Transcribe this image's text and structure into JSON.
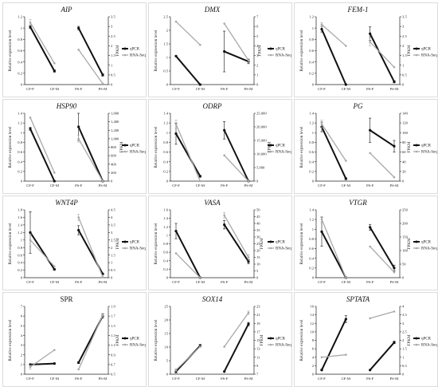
{
  "legend": {
    "qpcr_label": "qPCR",
    "rnaseq_label": "RNA-Seq"
  },
  "colors": {
    "qpcr": "#111111",
    "rnaseq": "#a9a9a9",
    "frame": "#d4d4d4",
    "axis": "#222222"
  },
  "axis_labels": {
    "left": "Relative expression level",
    "right": "FPKM"
  },
  "chart_data": [
    {
      "type": "line",
      "title": "AIP",
      "italic": true,
      "categories": [
        "CF-F",
        "CF-M",
        "PS-F",
        "PS-M"
      ],
      "left_ylim": [
        0,
        1.2
      ],
      "left_ticks": [
        "0",
        "0.2",
        "0.4",
        "0.6",
        "0.8",
        "1",
        "1.2"
      ],
      "right_ylim": [
        0,
        3.5
      ],
      "right_ticks": [
        "0",
        "0.5",
        "1",
        "1.5",
        "2",
        "2.5",
        "3",
        "3.5"
      ],
      "series": [
        {
          "name": "qPCR",
          "axis": "left",
          "values": [
            1.02,
            0.24,
            1.0,
            0.17
          ],
          "errors": [
            0.03,
            0.02,
            0.03,
            0.02
          ]
        },
        {
          "name": "RNA-Seq",
          "axis": "right",
          "values": [
            3.2,
            1.1,
            1.8,
            0.05
          ],
          "errors": [
            0.15,
            0,
            0,
            0
          ]
        }
      ]
    },
    {
      "type": "line",
      "title": "DMX",
      "italic": true,
      "categories": [
        "CF-F",
        "CF-M",
        "PS-F",
        "PS-M"
      ],
      "left_ylim": [
        0,
        2.5
      ],
      "left_ticks": [
        "0",
        "0.5",
        "1",
        "1.5",
        "2",
        "2.5"
      ],
      "right_ylim": [
        0,
        7
      ],
      "right_ticks": [
        "0",
        "1",
        "2",
        "3",
        "4",
        "5",
        "6",
        "7"
      ],
      "series": [
        {
          "name": "qPCR",
          "axis": "left",
          "values": [
            1.05,
            0.0,
            1.22,
            0.85
          ],
          "errors": [
            0,
            0,
            0.75,
            0.08
          ]
        },
        {
          "name": "RNA-Seq",
          "axis": "right",
          "values": [
            6.5,
            4.1,
            6.3,
            2.5
          ],
          "errors": [
            0,
            0,
            0,
            0.2
          ]
        }
      ]
    },
    {
      "type": "line",
      "title": "FEM-1",
      "italic": true,
      "categories": [
        "CF-F",
        "CF-M",
        "PS-F",
        "PS-M"
      ],
      "left_ylim": [
        0,
        1.2
      ],
      "left_ticks": [
        "0",
        "0.2",
        "0.4",
        "0.6",
        "0.8",
        "1",
        "1.2"
      ],
      "right_ylim": [
        0,
        3.5
      ],
      "right_ticks": [
        "0",
        "0.5",
        "1",
        "1.5",
        "2",
        "2.5",
        "3",
        "3.5"
      ],
      "series": [
        {
          "name": "qPCR",
          "axis": "left",
          "values": [
            0.98,
            0.0,
            0.9,
            0.05
          ],
          "errors": [
            0.05,
            0,
            0.12,
            0.02
          ]
        },
        {
          "name": "RNA-Seq",
          "axis": "right",
          "values": [
            3.1,
            2.0,
            2.2,
            0.9
          ],
          "errors": [
            0.1,
            0,
            0.2,
            0
          ]
        }
      ]
    },
    {
      "type": "line",
      "title": "HSP90",
      "italic": true,
      "categories": [
        "CF-F",
        "CF-M",
        "PS-F",
        "PS-M"
      ],
      "left_ylim": [
        0,
        1.4
      ],
      "left_ticks": [
        "0",
        "0.2",
        "0.4",
        "0.6",
        "0.8",
        "1",
        "1.2",
        "1.4"
      ],
      "right_ylim": [
        0,
        1600
      ],
      "right_ticks": [
        "0",
        "200",
        "400",
        "600",
        "800",
        "1,000",
        "1,200",
        "1,400",
        "1,600"
      ],
      "series": [
        {
          "name": "qPCR",
          "axis": "left",
          "values": [
            1.08,
            0.0,
            1.12,
            0.0
          ],
          "errors": [
            0.03,
            0,
            0.28,
            0
          ]
        },
        {
          "name": "RNA-Seq",
          "axis": "right",
          "values": [
            1500,
            200,
            1000,
            0
          ],
          "errors": [
            0,
            0,
            80,
            0
          ]
        }
      ]
    },
    {
      "type": "line",
      "title": "ODRP",
      "italic": true,
      "categories": [
        "CF-F",
        "CF-M",
        "PS-F",
        "PS-M"
      ],
      "left_ylim": [
        0,
        1.4
      ],
      "left_ticks": [
        "0",
        "0.2",
        "0.4",
        "0.6",
        "0.8",
        "1",
        "1.2",
        "1.4"
      ],
      "right_ylim": [
        0,
        25000
      ],
      "right_ticks": [
        "0",
        "5,000",
        "10,000",
        "15,000",
        "20,000",
        "25,000"
      ],
      "series": [
        {
          "name": "qPCR",
          "axis": "left",
          "values": [
            0.98,
            0.1,
            1.05,
            0.0
          ],
          "errors": [
            0.22,
            0.02,
            0.18,
            0
          ]
        },
        {
          "name": "RNA-Seq",
          "axis": "right",
          "values": [
            21000,
            0,
            9500,
            0
          ],
          "errors": [
            1500,
            0,
            0,
            0
          ]
        }
      ]
    },
    {
      "type": "line",
      "title": "PG",
      "italic": true,
      "categories": [
        "CF-F",
        "CF-M",
        "PS-F",
        "PS-M"
      ],
      "left_ylim": [
        0,
        1.4
      ],
      "left_ticks": [
        "0",
        "0.2",
        "0.4",
        "0.6",
        "0.8",
        "1",
        "1.2",
        "1.4"
      ],
      "right_ylim": [
        0,
        140
      ],
      "right_ticks": [
        "0",
        "20",
        "40",
        "60",
        "80",
        "100",
        "120",
        "140"
      ],
      "series": [
        {
          "name": "qPCR",
          "axis": "left",
          "values": [
            1.12,
            0.05,
            1.05,
            0.72
          ],
          "errors": [
            0.1,
            0.02,
            0.25,
            0.12
          ]
        },
        {
          "name": "RNA-Seq",
          "axis": "right",
          "values": [
            118,
            42,
            58,
            8
          ],
          "errors": [
            8,
            0,
            0,
            0
          ]
        }
      ]
    },
    {
      "type": "line",
      "title": "WNT4P",
      "italic": true,
      "categories": [
        "CF-F",
        "CF-M",
        "PS-F",
        "PS-M"
      ],
      "left_ylim": [
        0,
        1.8
      ],
      "left_ticks": [
        "0",
        "0.2",
        "0.4",
        "0.6",
        "0.8",
        "1",
        "1.2",
        "1.4",
        "1.6",
        "1.8"
      ],
      "right_ylim": [
        0,
        4.5
      ],
      "right_ticks": [
        "0",
        "0.5",
        "1",
        "1.5",
        "2",
        "2.5",
        "3",
        "3.5",
        "4",
        "4.5"
      ],
      "series": [
        {
          "name": "qPCR",
          "axis": "left",
          "values": [
            1.2,
            0.22,
            1.26,
            0.1
          ],
          "errors": [
            0.55,
            0.02,
            0.12,
            0.02
          ]
        },
        {
          "name": "RNA-Seq",
          "axis": "right",
          "values": [
            2.5,
            0.75,
            4.0,
            0.05
          ],
          "errors": [
            0.4,
            0,
            0.2,
            0
          ]
        }
      ]
    },
    {
      "type": "line",
      "title": "VASA",
      "italic": true,
      "categories": [
        "CF-F",
        "CF-M",
        "PS-F",
        "PS-M"
      ],
      "left_ylim": [
        0,
        1.6
      ],
      "left_ticks": [
        "0",
        "0.2",
        "0.4",
        "0.6",
        "0.8",
        "1",
        "1.2",
        "1.4",
        "1.6"
      ],
      "right_ylim": [
        0,
        50
      ],
      "right_ticks": [
        "0",
        "5",
        "10",
        "15",
        "20",
        "25",
        "30",
        "35",
        "40",
        "45",
        "50"
      ],
      "series": [
        {
          "name": "qPCR",
          "axis": "left",
          "values": [
            1.1,
            0.0,
            1.25,
            0.38
          ],
          "errors": [
            0.18,
            0,
            0.1,
            0.05
          ]
        },
        {
          "name": "RNA-Seq",
          "axis": "right",
          "values": [
            18,
            0,
            46,
            15
          ],
          "errors": [
            0,
            0,
            2,
            2
          ]
        }
      ]
    },
    {
      "type": "line",
      "title": "VTGR",
      "italic": true,
      "categories": [
        "CF-F",
        "CF-M",
        "PS-F",
        "PS-M"
      ],
      "left_ylim": [
        0,
        1.4
      ],
      "left_ticks": [
        "0",
        "0.2",
        "0.4",
        "0.6",
        "0.8",
        "1",
        "1.2",
        "1.4"
      ],
      "right_ylim": [
        0,
        250
      ],
      "right_ticks": [
        "0",
        "50",
        "100",
        "150",
        "200",
        "250"
      ],
      "series": [
        {
          "name": "qPCR",
          "axis": "left",
          "values": [
            0.95,
            0.0,
            1.04,
            0.2
          ],
          "errors": [
            0.3,
            0,
            0.06,
            0.06
          ]
        },
        {
          "name": "RNA-Seq",
          "axis": "right",
          "values": [
            215,
            0,
            115,
            20
          ],
          "errors": [
            10,
            0,
            0,
            0
          ]
        }
      ]
    },
    {
      "type": "line",
      "title": "SPR",
      "italic": false,
      "categories": [
        "CF-F",
        "CF-M",
        "PS-F",
        "PS-M"
      ],
      "left_ylim": [
        0,
        7
      ],
      "left_ticks": [
        "0",
        "1",
        "2",
        "3",
        "4",
        "5",
        "6",
        "7"
      ],
      "right_ylim": [
        0.5,
        1.9
      ],
      "right_ticks": [
        "0.5",
        "0.7",
        "0.9",
        "1.1",
        "1.3",
        "1.5",
        "1.7",
        "1.9"
      ],
      "series": [
        {
          "name": "qPCR",
          "axis": "left",
          "values": [
            1.0,
            1.1,
            1.2,
            6.0
          ],
          "errors": [
            0.05,
            0.05,
            0.1,
            0.2
          ]
        },
        {
          "name": "RNA-Seq",
          "axis": "right",
          "values": [
            0.65,
            1.0,
            0.6,
            1.72
          ],
          "errors": [
            0.04,
            0,
            0,
            0.04
          ]
        }
      ]
    },
    {
      "type": "line",
      "title": "SOX14",
      "italic": true,
      "categories": [
        "CF-F",
        "CF-M",
        "PS-F",
        "PS-M"
      ],
      "left_ylim": [
        0,
        25
      ],
      "left_ticks": [
        "0",
        "5",
        "10",
        "15",
        "20",
        "25"
      ],
      "right_ylim": [
        7,
        23
      ],
      "right_ticks": [
        "7",
        "9",
        "11",
        "13",
        "15",
        "17",
        "19",
        "21",
        "23"
      ],
      "series": [
        {
          "name": "qPCR",
          "axis": "left",
          "values": [
            1.0,
            10.5,
            1.0,
            18.5
          ],
          "errors": [
            0.5,
            0.5,
            0,
            0.6
          ]
        },
        {
          "name": "RNA-Seq",
          "axis": "right",
          "values": [
            8.0,
            13.5,
            13.5,
            21.5
          ],
          "errors": [
            0.3,
            0,
            0,
            0.4
          ]
        }
      ]
    },
    {
      "type": "line",
      "title": "SPTATA",
      "italic": true,
      "categories": [
        "CF-F",
        "CF-M",
        "PS-F",
        "PS-M"
      ],
      "left_ylim": [
        0,
        16
      ],
      "left_ticks": [
        "0",
        "2",
        "4",
        "6",
        "8",
        "10",
        "12",
        "14",
        "16"
      ],
      "right_ylim": [
        0,
        4
      ],
      "right_ticks": [
        "0",
        "0.5",
        "1",
        "1.5",
        "2",
        "2.5",
        "3",
        "3.5",
        "4"
      ],
      "series": [
        {
          "name": "qPCR",
          "axis": "left",
          "values": [
            1.0,
            13.0,
            1.0,
            7.5
          ],
          "errors": [
            0.2,
            0.8,
            0,
            0.3
          ]
        },
        {
          "name": "RNA-Seq",
          "axis": "right",
          "values": [
            1.0,
            1.15,
            3.3,
            3.7
          ],
          "errors": [
            0,
            0,
            0,
            0
          ]
        }
      ]
    }
  ]
}
